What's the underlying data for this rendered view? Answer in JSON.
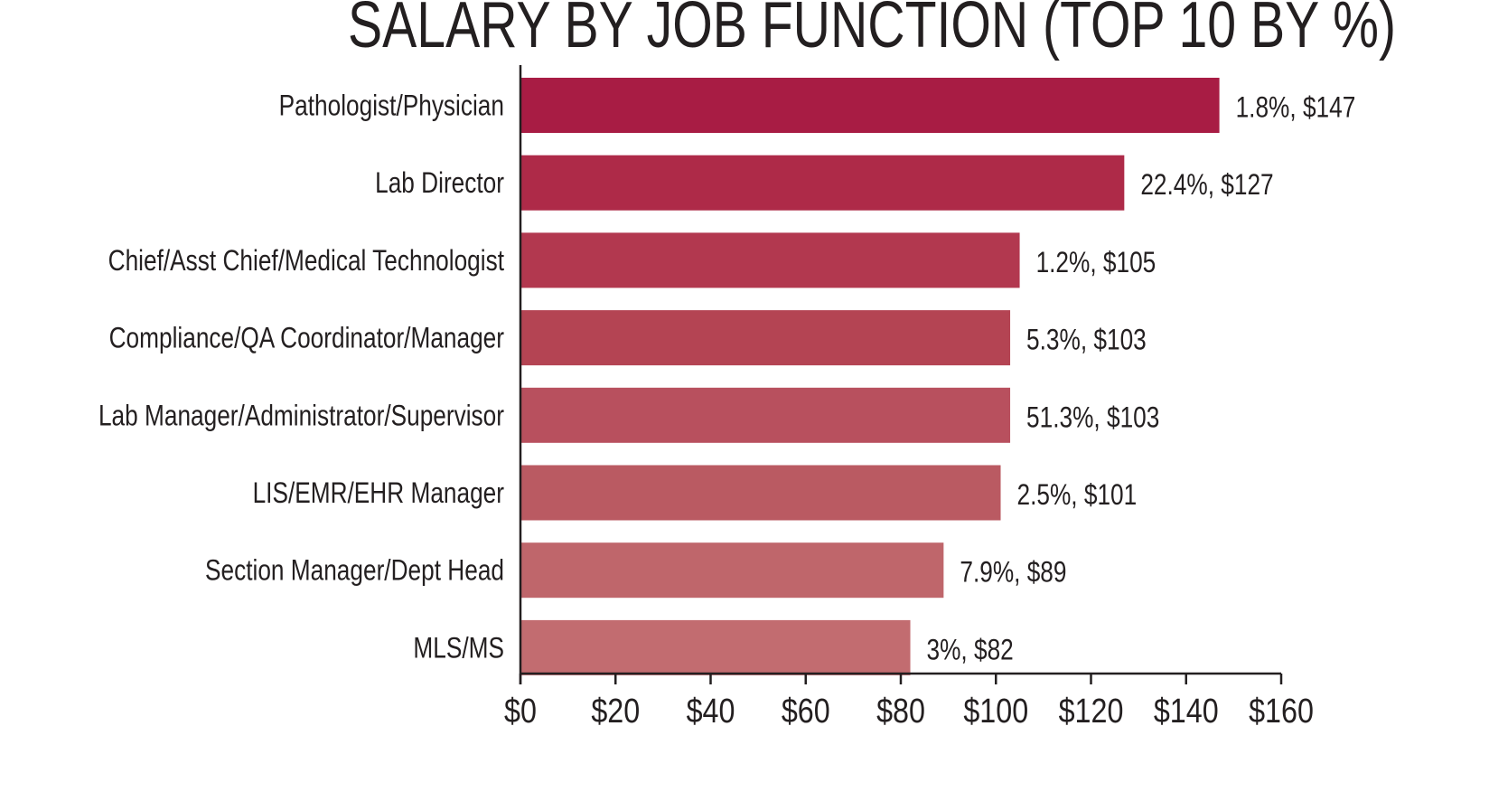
{
  "chart_data": {
    "type": "bar",
    "orientation": "horizontal",
    "title": "SALARY BY JOB FUNCTION (TOP 10 BY %)",
    "xlabel": "",
    "ylabel": "",
    "xlim": [
      0,
      160
    ],
    "x_ticks": [
      "$0",
      "$20",
      "$40",
      "$60",
      "$80",
      "$100",
      "$120",
      "$140",
      "$160"
    ],
    "x_tick_values": [
      0,
      20,
      40,
      60,
      80,
      100,
      120,
      140,
      160
    ],
    "grid": false,
    "categories": [
      "Pathologist/Physician",
      "Lab Director",
      "Chief/Asst Chief/Medical Technologist",
      "Compliance/QA Coordinator/Manager",
      "Lab Manager/Administrator/Supervisor",
      "LIS/EMR/EHR Manager",
      "Section Manager/Dept Head",
      "MLS/MS"
    ],
    "values": [
      147,
      127,
      105,
      103,
      103,
      101,
      89,
      82
    ],
    "percent": [
      1.8,
      22.4,
      1.2,
      5.3,
      51.3,
      2.5,
      7.9,
      3
    ],
    "data_labels": [
      "1.8%, $147",
      "22.4%, $127",
      "1.2%, $105",
      "5.3%, $103",
      "51.3%, $103",
      "2.5%, $101",
      "7.9%, $89",
      "3%, $82"
    ],
    "colors": [
      "#a81c44",
      "#ae2a48",
      "#b2384f",
      "#b44453",
      "#b8505e",
      "#ba5a62",
      "#bf666b",
      "#c26c70"
    ]
  }
}
